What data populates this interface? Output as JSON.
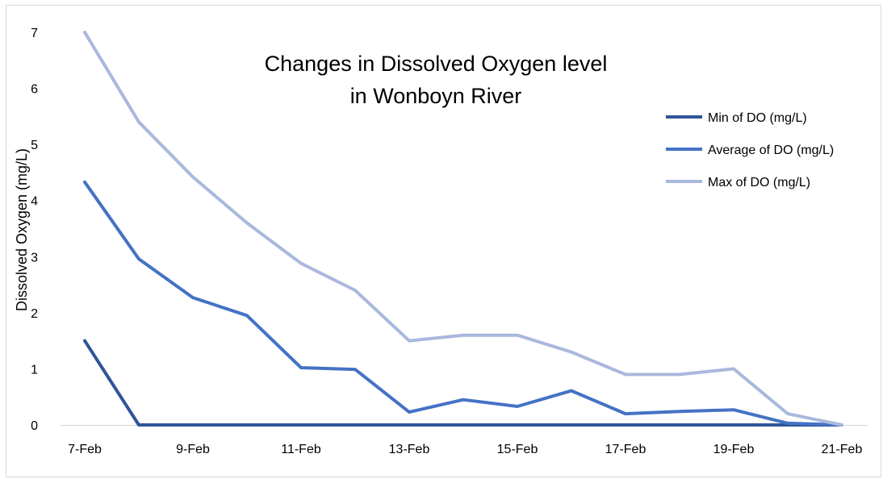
{
  "chart_data": {
    "type": "line",
    "title_lines": [
      "Changes in Dissolved Oxygen level",
      "in Wonboyn River"
    ],
    "xlabel": "",
    "ylabel": "Dissolved Oxygen (mg/L)",
    "categories": [
      "7-Feb",
      "8-Feb",
      "9-Feb",
      "10-Feb",
      "11-Feb",
      "12-Feb",
      "13-Feb",
      "14-Feb",
      "15-Feb",
      "16-Feb",
      "17-Feb",
      "18-Feb",
      "19-Feb",
      "20-Feb",
      "21-Feb"
    ],
    "x_tick_labels": [
      "7-Feb",
      "9-Feb",
      "11-Feb",
      "13-Feb",
      "15-Feb",
      "17-Feb",
      "19-Feb",
      "21-Feb"
    ],
    "y_ticks": [
      "0",
      "1",
      "2",
      "3",
      "4",
      "5",
      "6",
      "7"
    ],
    "ylim": [
      0,
      7
    ],
    "grid": false,
    "legend_position": "right",
    "series": [
      {
        "name": "Min of DO (mg/L)",
        "color": "#2f5597",
        "values": [
          1.5,
          0,
          0,
          0,
          0,
          0,
          0,
          0,
          0,
          0,
          0,
          0,
          0,
          0,
          0
        ]
      },
      {
        "name": "Average of DO (mg/L)",
        "color": "#4472c4",
        "values": [
          4.33,
          2.96,
          2.27,
          1.95,
          1.02,
          0.99,
          0.23,
          0.45,
          0.33,
          0.61,
          0.2,
          0.24,
          0.27,
          0.03,
          0
        ]
      },
      {
        "name": "Max of DO (mg/L)",
        "color": "#a9b8dd",
        "values": [
          7.0,
          5.4,
          4.42,
          3.6,
          2.88,
          2.4,
          1.5,
          1.6,
          1.6,
          1.3,
          0.9,
          0.9,
          1.0,
          0.2,
          0
        ]
      }
    ]
  }
}
